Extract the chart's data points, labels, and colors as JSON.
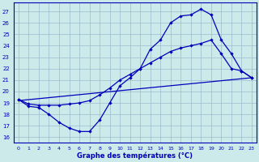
{
  "title": "Graphe des températures (°C)",
  "bg_color": "#cceaea",
  "grid_color": "#99bbcc",
  "line_color": "#0000bb",
  "x_ticks": [
    0,
    1,
    2,
    3,
    4,
    5,
    6,
    7,
    8,
    9,
    10,
    11,
    12,
    13,
    14,
    15,
    16,
    17,
    18,
    19,
    20,
    21,
    22,
    23
  ],
  "y_ticks": [
    16,
    17,
    18,
    19,
    20,
    21,
    22,
    23,
    24,
    25,
    26,
    27
  ],
  "xlim": [
    -0.5,
    23.5
  ],
  "ylim": [
    15.5,
    27.8
  ],
  "line1_x": [
    0,
    1,
    2,
    3,
    4,
    5,
    6,
    7,
    8,
    9,
    10,
    11,
    12,
    13,
    14,
    15,
    16,
    17,
    18,
    19,
    20,
    21,
    22,
    23
  ],
  "line1_y": [
    19.3,
    18.7,
    18.6,
    18.0,
    17.3,
    16.8,
    16.5,
    16.5,
    17.5,
    19.0,
    20.5,
    21.2,
    22.0,
    23.7,
    24.5,
    26.0,
    26.6,
    26.7,
    27.2,
    26.7,
    24.5,
    23.3,
    21.8,
    21.2
  ],
  "line2_x": [
    0,
    1,
    2,
    3,
    4,
    5,
    6,
    7,
    8,
    9,
    10,
    11,
    12,
    13,
    14,
    15,
    16,
    17,
    18,
    19,
    20,
    21,
    22,
    23
  ],
  "line2_y": [
    19.3,
    18.9,
    18.8,
    18.8,
    18.8,
    18.9,
    19.0,
    19.2,
    19.7,
    20.3,
    21.0,
    21.5,
    22.0,
    22.5,
    23.0,
    23.5,
    23.8,
    24.0,
    24.2,
    24.5,
    23.3,
    22.0,
    21.8,
    21.2
  ],
  "line3_x": [
    0,
    23
  ],
  "line3_y": [
    19.2,
    21.2
  ]
}
